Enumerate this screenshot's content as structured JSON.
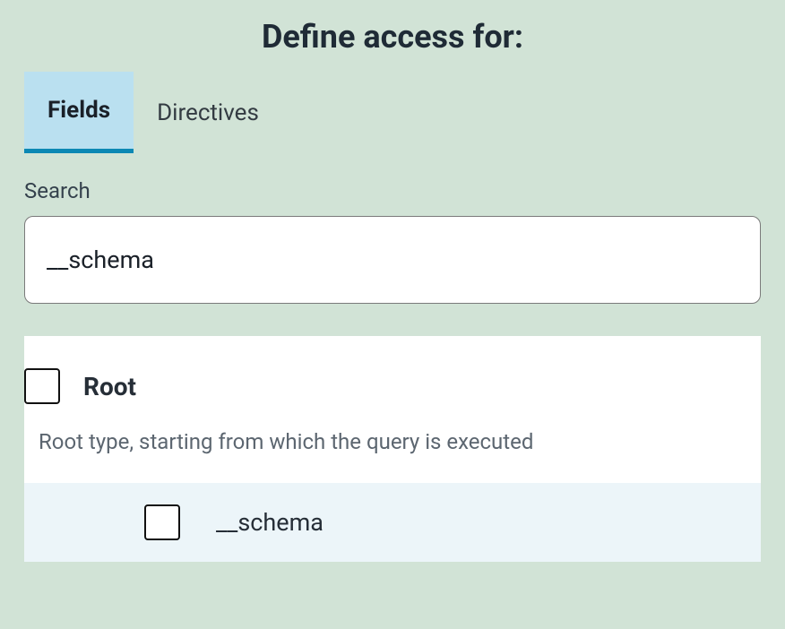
{
  "header": {
    "title": "Define access for:"
  },
  "tabs": {
    "fields_label": "Fields",
    "directives_label": "Directives",
    "active": "fields"
  },
  "search": {
    "label": "Search",
    "value": "__schema"
  },
  "tree": {
    "root": {
      "label": "Root",
      "description": "Root type, starting from which the query is executed",
      "checked": false
    },
    "child": {
      "label": "__schema",
      "checked": false
    }
  },
  "colors": {
    "page_background": "#d1e3d6",
    "tab_active_background": "#bae0f0",
    "tab_active_border": "#0c88b4",
    "panel_background": "#ffffff",
    "child_row_background": "#ecf5f9",
    "text_primary": "#1a2028",
    "text_secondary": "#5c6670",
    "input_border": "#7a7a7a"
  }
}
